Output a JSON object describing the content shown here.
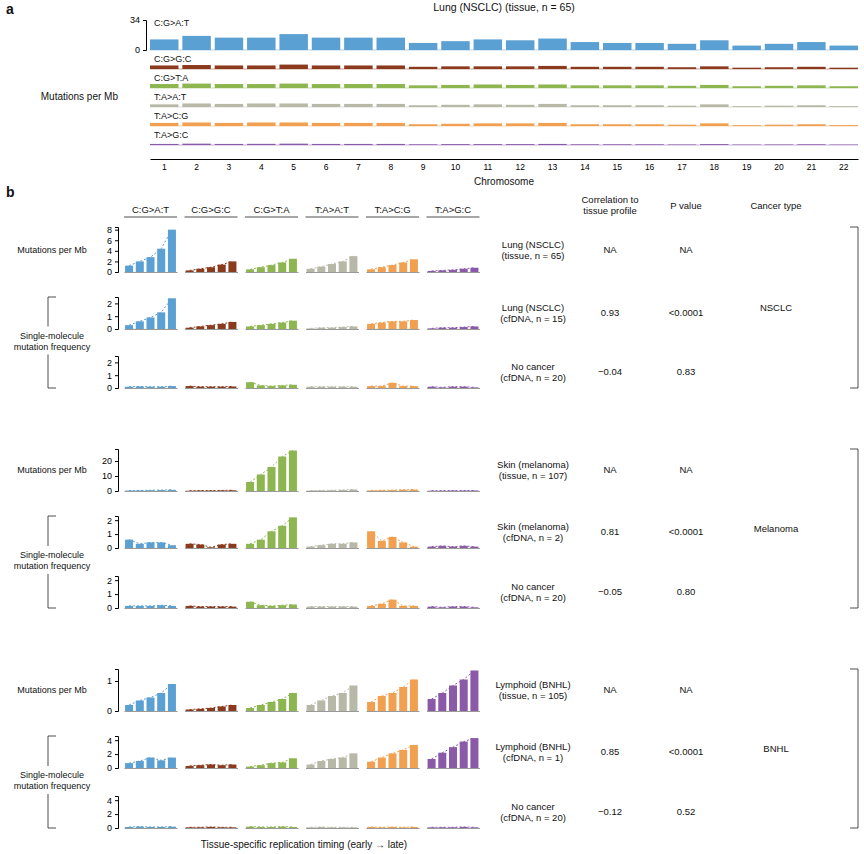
{
  "panels": [
    "a",
    "b"
  ],
  "column_headers": [
    "C:G>A:T",
    "C:G>G:C",
    "C:G>T:A",
    "T:A>A:T",
    "T:A>C:G",
    "T:A>G:C"
  ],
  "table_headers": [
    [
      "Correlation to",
      "tissue profile"
    ],
    [
      "P value"
    ],
    [
      "Cancer type"
    ]
  ],
  "groups": [
    {
      "cancer_type": "NSCLC",
      "bracket_label": [
        "Single-molecule",
        "mutation frequency"
      ]
    },
    {
      "cancer_type": "Melanoma",
      "bracket_label": [
        "Single-molecule",
        "mutation frequency"
      ]
    },
    {
      "cancer_type": "BNHL",
      "bracket_label": [
        "Single-molecule",
        "mutation frequency"
      ]
    }
  ],
  "chart_data": [
    {
      "type": "bar",
      "title": "Lung (NSCLC) (tissue, n = 65)",
      "ylabel": "Mutations per Mb",
      "xlabel": "Chromosome",
      "categories": [
        "1",
        "2",
        "3",
        "4",
        "5",
        "6",
        "7",
        "8",
        "9",
        "10",
        "11",
        "12",
        "13",
        "14",
        "15",
        "16",
        "17",
        "18",
        "19",
        "20",
        "21",
        "22"
      ],
      "ylim": [
        0,
        34
      ],
      "yticks": [
        0,
        34
      ],
      "series": [
        {
          "name": "C:G>A:T",
          "color": "#5aa0d2",
          "values": [
            12,
            16,
            14,
            14,
            18,
            14,
            14,
            14,
            8,
            10,
            12,
            11,
            13,
            9,
            8,
            8,
            7,
            11,
            5,
            7,
            9,
            5
          ]
        },
        {
          "name": "C:G>G:C",
          "color": "#8b3a1e",
          "values": [
            4,
            4.5,
            4,
            4,
            5,
            4,
            4,
            4,
            2.5,
            3,
            3,
            3,
            3.5,
            2.5,
            2.5,
            2.5,
            2,
            3,
            1.5,
            2,
            2.5,
            1.5
          ]
        },
        {
          "name": "C:G>T:A",
          "color": "#8db650",
          "values": [
            4.5,
            5,
            4.5,
            4.5,
            5,
            4.5,
            4.5,
            4.5,
            3,
            3.5,
            4,
            3.5,
            4,
            3,
            3,
            3,
            2.5,
            3.5,
            2,
            2.5,
            3,
            2
          ]
        },
        {
          "name": "T:A>A:T",
          "color": "#b8b8a8",
          "values": [
            3,
            4,
            3.5,
            4,
            4,
            3.5,
            3.5,
            3.5,
            2,
            2.5,
            3,
            2.5,
            3.5,
            2,
            2,
            2,
            1.5,
            3,
            1,
            1.5,
            2,
            1
          ]
        },
        {
          "name": "T:A>C:G",
          "color": "#f0a050",
          "values": [
            3.5,
            4,
            3.5,
            4,
            4,
            3.5,
            3.5,
            3.5,
            2,
            2.5,
            3,
            3,
            3.5,
            2,
            2,
            2,
            1.5,
            3,
            1,
            1.5,
            2,
            1
          ]
        },
        {
          "name": "T:A>G:C",
          "color": "#8a5aa8",
          "values": [
            1.2,
            1.5,
            1.2,
            1.3,
            1.5,
            1.2,
            1.2,
            1.2,
            0.8,
            1,
            1,
            1,
            1.2,
            0.8,
            0.8,
            0.8,
            0.6,
            1,
            0.5,
            0.6,
            0.8,
            0.5
          ]
        }
      ]
    },
    {
      "type": "bar",
      "title": [
        "Lung (NSCLC)",
        "(tissue, n = 65)"
      ],
      "ylabel": "Mutations per Mb",
      "categories": [
        null,
        null,
        null,
        null,
        null
      ],
      "ylim": [
        0,
        8.5
      ],
      "yticks": [
        0,
        2,
        4,
        6,
        8
      ],
      "line_style": "dashed",
      "annotations": {
        "correlation": "NA",
        "p_value": "NA"
      },
      "series": [
        {
          "color": "#5aa0d2",
          "values": [
            1.2,
            2.0,
            2.8,
            4.4,
            8.0
          ]
        },
        {
          "color": "#8b3a1e",
          "values": [
            0.3,
            0.6,
            0.9,
            1.4,
            2.0
          ]
        },
        {
          "color": "#8db650",
          "values": [
            0.5,
            0.9,
            1.3,
            1.8,
            2.5
          ]
        },
        {
          "color": "#b8b8a8",
          "values": [
            0.6,
            1.0,
            1.5,
            2.0,
            3.0
          ]
        },
        {
          "color": "#f0a050",
          "values": [
            0.5,
            0.9,
            1.3,
            1.8,
            2.4
          ]
        },
        {
          "color": "#8a5aa8",
          "values": [
            0.2,
            0.3,
            0.4,
            0.6,
            0.8
          ]
        }
      ]
    },
    {
      "type": "bar",
      "title": [
        "Lung (NSCLC)",
        "(cfDNA, n = 15)"
      ],
      "categories": [
        null,
        null,
        null,
        null,
        null
      ],
      "ylim": [
        0,
        2.5
      ],
      "yticks": [
        0,
        1,
        2
      ],
      "line_style": "dashed",
      "annotations": {
        "correlation": "0.93",
        "p_value": "<0.0001"
      },
      "series": [
        {
          "color": "#5aa0d2",
          "values": [
            0.3,
            0.6,
            0.9,
            1.3,
            2.4
          ]
        },
        {
          "color": "#8b3a1e",
          "values": [
            0.1,
            0.2,
            0.3,
            0.4,
            0.55
          ]
        },
        {
          "color": "#8db650",
          "values": [
            0.2,
            0.3,
            0.4,
            0.5,
            0.65
          ]
        },
        {
          "color": "#b8b8a8",
          "values": [
            0.05,
            0.1,
            0.1,
            0.15,
            0.2
          ]
        },
        {
          "color": "#f0a050",
          "values": [
            0.4,
            0.5,
            0.6,
            0.6,
            0.7
          ]
        },
        {
          "color": "#8a5aa8",
          "values": [
            0.05,
            0.1,
            0.1,
            0.15,
            0.2
          ]
        }
      ]
    },
    {
      "type": "bar",
      "title": [
        "No cancer",
        "(cfDNA, n = 20)"
      ],
      "categories": [
        null,
        null,
        null,
        null,
        null
      ],
      "ylim": [
        0,
        2.5
      ],
      "yticks": [
        0,
        1,
        2
      ],
      "line_style": "dashed",
      "annotations": {
        "correlation": "−0.04",
        "p_value": "0.83"
      },
      "series": [
        {
          "color": "#5aa0d2",
          "values": [
            0.1,
            0.12,
            0.1,
            0.1,
            0.15
          ]
        },
        {
          "color": "#8b3a1e",
          "values": [
            0.15,
            0.1,
            0.1,
            0.1,
            0.12
          ]
        },
        {
          "color": "#8db650",
          "values": [
            0.45,
            0.2,
            0.15,
            0.2,
            0.25
          ]
        },
        {
          "color": "#b8b8a8",
          "values": [
            0.1,
            0.1,
            0.1,
            0.1,
            0.1
          ]
        },
        {
          "color": "#f0a050",
          "values": [
            0.15,
            0.15,
            0.4,
            0.15,
            0.15
          ]
        },
        {
          "color": "#8a5aa8",
          "values": [
            0.1,
            0.05,
            0.1,
            0.1,
            0.05
          ]
        }
      ]
    },
    {
      "type": "bar",
      "title": [
        "Skin (melanoma)",
        "(tissue, n = 107)"
      ],
      "ylabel": "Mutations per Mb",
      "categories": [
        null,
        null,
        null,
        null,
        null
      ],
      "ylim": [
        0,
        28
      ],
      "yticks": [
        0,
        10,
        20
      ],
      "line_style": "dashed",
      "annotations": {
        "correlation": "NA",
        "p_value": "NA"
      },
      "series": [
        {
          "color": "#5aa0d2",
          "values": [
            0.3,
            0.4,
            0.5,
            0.6,
            0.8
          ]
        },
        {
          "color": "#8b3a1e",
          "values": [
            0.2,
            0.3,
            0.3,
            0.4,
            0.5
          ]
        },
        {
          "color": "#8db650",
          "values": [
            6,
            11,
            16,
            23,
            27
          ]
        },
        {
          "color": "#b8b8a8",
          "values": [
            0.3,
            0.4,
            0.5,
            0.7,
            1.0
          ]
        },
        {
          "color": "#f0a050",
          "values": [
            0.4,
            0.5,
            0.6,
            0.8,
            1.0
          ]
        },
        {
          "color": "#8a5aa8",
          "values": [
            0.2,
            0.2,
            0.3,
            0.3,
            0.4
          ]
        }
      ]
    },
    {
      "type": "bar",
      "title": [
        "Skin (melanoma)",
        "(cfDNA, n = 2)"
      ],
      "categories": [
        null,
        null,
        null,
        null,
        null
      ],
      "ylim": [
        0,
        2.3
      ],
      "yticks": [
        0,
        1,
        2
      ],
      "line_style": "dashed",
      "annotations": {
        "correlation": "0.81",
        "p_value": "<0.0001"
      },
      "series": [
        {
          "color": "#5aa0d2",
          "values": [
            0.6,
            0.3,
            0.4,
            0.4,
            0.2
          ]
        },
        {
          "color": "#8b3a1e",
          "values": [
            0.3,
            0.25,
            0.05,
            0.25,
            0.3
          ]
        },
        {
          "color": "#8db650",
          "values": [
            0.3,
            0.6,
            1.2,
            1.6,
            2.2
          ]
        },
        {
          "color": "#b8b8a8",
          "values": [
            0.1,
            0.2,
            0.3,
            0.3,
            0.4
          ]
        },
        {
          "color": "#f0a050",
          "values": [
            1.2,
            0.5,
            0.8,
            0.4,
            0.1
          ]
        },
        {
          "color": "#8a5aa8",
          "values": [
            0.1,
            0.15,
            0.1,
            0.15,
            0.1
          ]
        }
      ]
    },
    {
      "type": "bar",
      "title": [
        "No cancer",
        "(cfDNA, n = 20)"
      ],
      "categories": [
        null,
        null,
        null,
        null,
        null
      ],
      "ylim": [
        0,
        2.3
      ],
      "yticks": [
        0,
        1,
        2
      ],
      "line_style": "dashed",
      "annotations": {
        "correlation": "−0.05",
        "p_value": "0.80"
      },
      "series": [
        {
          "color": "#5aa0d2",
          "values": [
            0.15,
            0.15,
            0.15,
            0.2,
            0.15
          ]
        },
        {
          "color": "#8b3a1e",
          "values": [
            0.15,
            0.1,
            0.1,
            0.1,
            0.1
          ]
        },
        {
          "color": "#8db650",
          "values": [
            0.45,
            0.2,
            0.15,
            0.2,
            0.25
          ]
        },
        {
          "color": "#b8b8a8",
          "values": [
            0.1,
            0.1,
            0.1,
            0.1,
            0.1
          ]
        },
        {
          "color": "#f0a050",
          "values": [
            0.15,
            0.3,
            0.6,
            0.15,
            0.15
          ]
        },
        {
          "color": "#8a5aa8",
          "values": [
            0.1,
            0.05,
            0.1,
            0.1,
            0.05
          ]
        }
      ]
    },
    {
      "type": "bar",
      "title": [
        "Lymphoid (BNHL)",
        "(tissue, n = 105)"
      ],
      "ylabel": "Mutations per Mb",
      "categories": [
        null,
        null,
        null,
        null,
        null
      ],
      "ylim": [
        0,
        1.4
      ],
      "yticks": [
        0,
        1
      ],
      "line_style": "dashed",
      "annotations": {
        "correlation": "NA",
        "p_value": "NA"
      },
      "series": [
        {
          "color": "#5aa0d2",
          "values": [
            0.2,
            0.35,
            0.45,
            0.6,
            0.9
          ]
        },
        {
          "color": "#8b3a1e",
          "values": [
            0.05,
            0.07,
            0.1,
            0.15,
            0.2
          ]
        },
        {
          "color": "#8db650",
          "values": [
            0.1,
            0.2,
            0.3,
            0.4,
            0.6
          ]
        },
        {
          "color": "#b8b8a8",
          "values": [
            0.2,
            0.35,
            0.5,
            0.6,
            0.85
          ]
        },
        {
          "color": "#f0a050",
          "values": [
            0.3,
            0.5,
            0.6,
            0.8,
            1.05
          ]
        },
        {
          "color": "#8a5aa8",
          "values": [
            0.4,
            0.6,
            0.85,
            1.05,
            1.35
          ]
        }
      ]
    },
    {
      "type": "bar",
      "title": [
        "Lymphoid (BNHL)",
        "(cfDNA, n = 1)"
      ],
      "categories": [
        null,
        null,
        null,
        null,
        null
      ],
      "ylim": [
        0,
        4.6
      ],
      "yticks": [
        0,
        2,
        4
      ],
      "line_style": "dashed",
      "annotations": {
        "correlation": "0.85",
        "p_value": "<0.0001"
      },
      "series": [
        {
          "color": "#5aa0d2",
          "values": [
            0.7,
            1.0,
            1.5,
            1.1,
            1.5
          ]
        },
        {
          "color": "#8b3a1e",
          "values": [
            0.3,
            0.4,
            0.5,
            0.4,
            0.5
          ]
        },
        {
          "color": "#8db650",
          "values": [
            0.2,
            0.4,
            0.7,
            0.8,
            1.4
          ]
        },
        {
          "color": "#b8b8a8",
          "values": [
            0.5,
            1.0,
            1.3,
            1.5,
            2.1
          ]
        },
        {
          "color": "#f0a050",
          "values": [
            0.9,
            1.5,
            2.1,
            2.6,
            3.3
          ]
        },
        {
          "color": "#8a5aa8",
          "values": [
            1.3,
            2.2,
            3.0,
            3.8,
            4.3
          ]
        }
      ]
    },
    {
      "type": "bar",
      "title": [
        "No cancer",
        "(cfDNA, n = 20)"
      ],
      "xlabel": "Tissue-specific replication timing (early → late)",
      "categories": [
        null,
        null,
        null,
        null,
        null
      ],
      "ylim": [
        0,
        4.6
      ],
      "yticks": [
        0,
        2,
        4
      ],
      "line_style": "dashed",
      "annotations": {
        "correlation": "−0.12",
        "p_value": "0.52"
      },
      "series": [
        {
          "color": "#5aa0d2",
          "values": [
            0.15,
            0.2,
            0.15,
            0.15,
            0.2
          ]
        },
        {
          "color": "#8b3a1e",
          "values": [
            0.1,
            0.1,
            0.15,
            0.1,
            0.1
          ]
        },
        {
          "color": "#8db650",
          "values": [
            0.2,
            0.15,
            0.15,
            0.2,
            0.15
          ]
        },
        {
          "color": "#b8b8a8",
          "values": [
            0.1,
            0.15,
            0.1,
            0.1,
            0.1
          ]
        },
        {
          "color": "#f0a050",
          "values": [
            0.15,
            0.1,
            0.15,
            0.1,
            0.15
          ]
        },
        {
          "color": "#8a5aa8",
          "values": [
            0.1,
            0.1,
            0.1,
            0.15,
            0.1
          ]
        }
      ]
    }
  ]
}
